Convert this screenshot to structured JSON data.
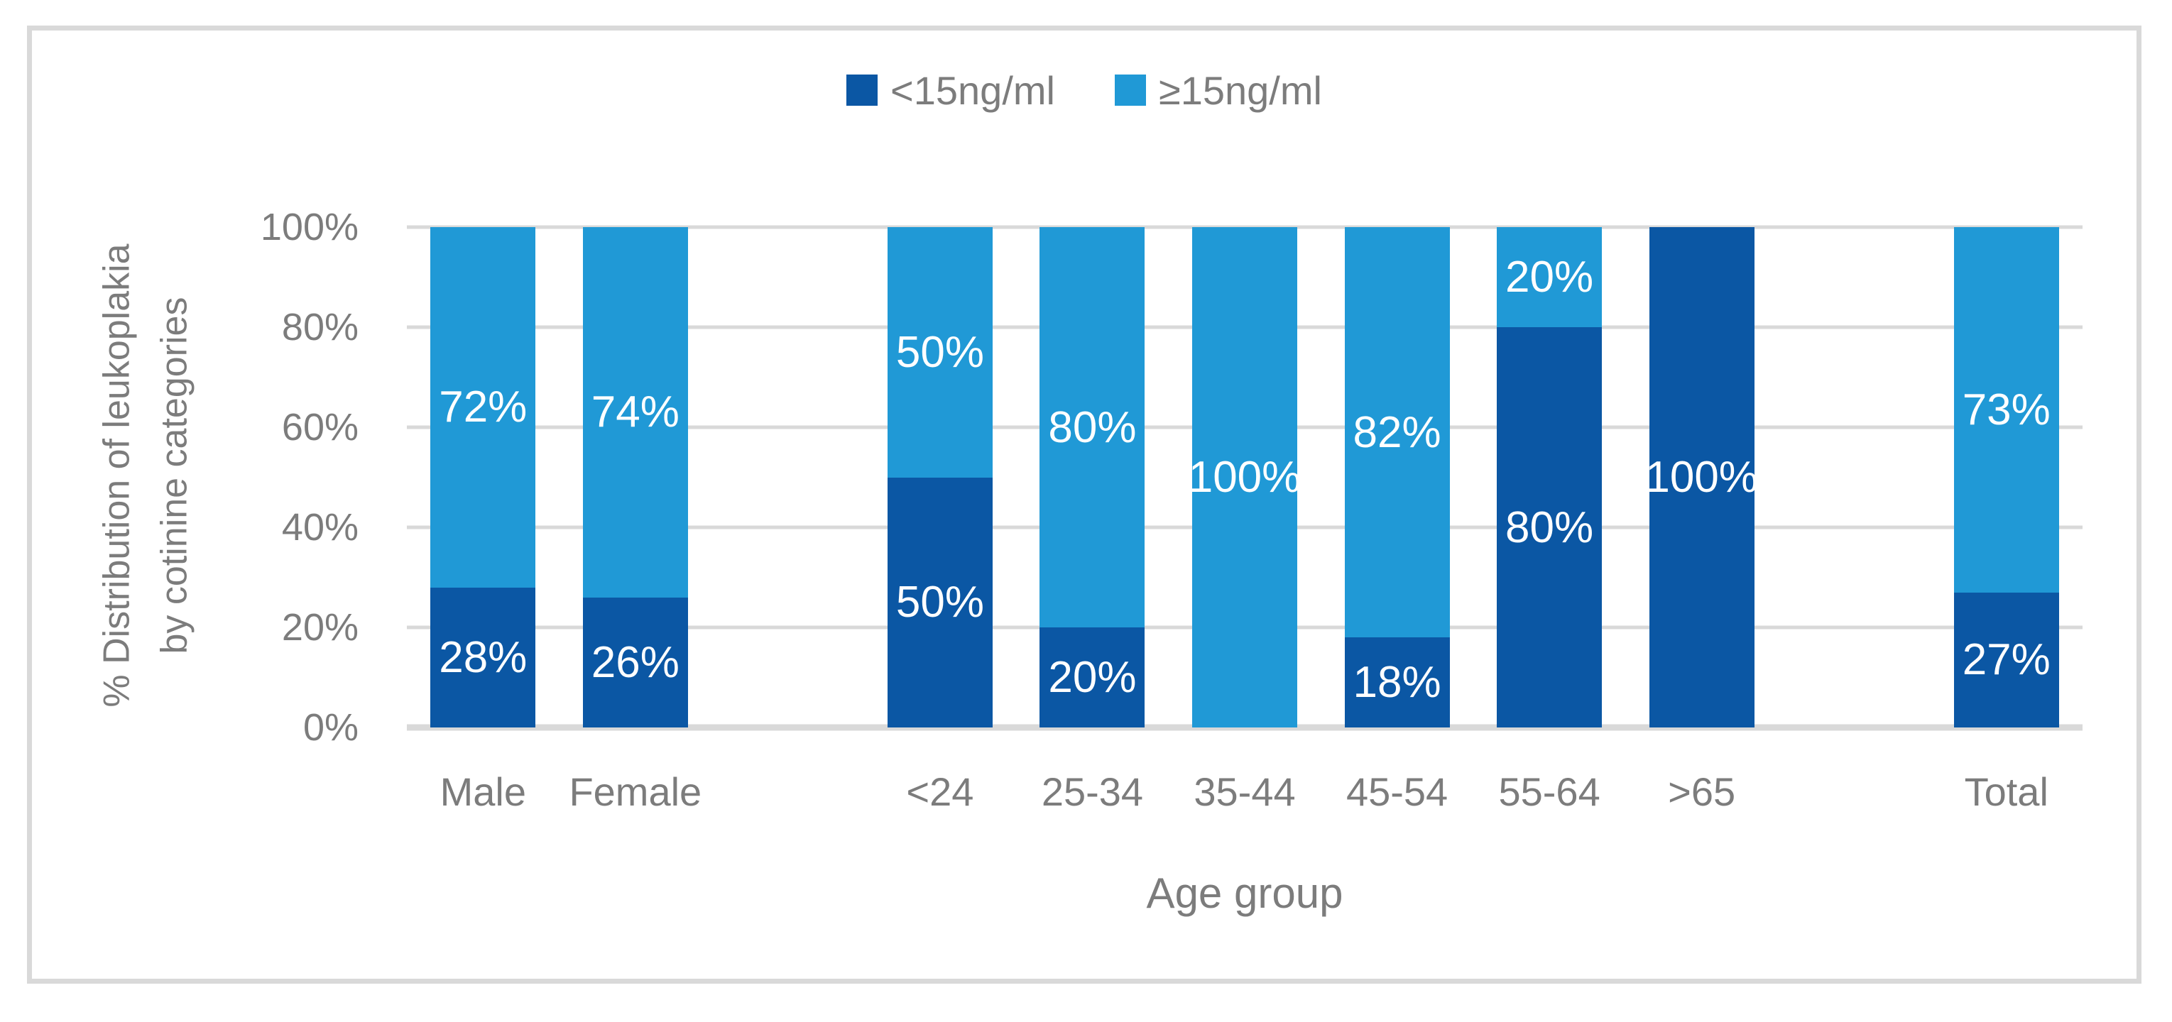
{
  "colors": {
    "dark_blue": "#0b57a4",
    "light_blue": "#2099d6",
    "axis_text_gray": "#7c7c7c",
    "gridline_gray": "#d9d9d9",
    "figure_border_gray": "#d9d9d9",
    "data_label_white": "#ffffff"
  },
  "chart_data": {
    "type": "bar",
    "stacked": true,
    "normalized_percent": true,
    "legend_position": "top",
    "grid": "horizontal",
    "value_suffix": "%",
    "xlabel": "Age group",
    "ylabel_line1": "% Distribution of leukoplakia",
    "ylabel_line2": "by cotinine categories",
    "ylim": [
      0,
      100
    ],
    "yticks": [
      "100%",
      "80%",
      "60%",
      "40%",
      "20%",
      "0%"
    ],
    "categories": [
      "Male",
      "Female",
      "<24",
      "25-34",
      "35-44",
      "45-54",
      "55-64",
      ">65",
      "Total"
    ],
    "slot_layout": [
      "Male",
      "Female",
      "",
      "<24",
      "25-34",
      "35-44",
      "45-54",
      "55-64",
      ">65",
      "",
      "Total"
    ],
    "series": [
      {
        "name": "<15ng/ml",
        "color": "#0b57a4",
        "values": [
          28,
          26,
          50,
          20,
          0,
          18,
          80,
          100,
          27
        ]
      },
      {
        "name": "≥15ng/ml",
        "color": "#2099d6",
        "values": [
          72,
          74,
          50,
          80,
          100,
          82,
          20,
          0,
          73
        ]
      }
    ]
  }
}
